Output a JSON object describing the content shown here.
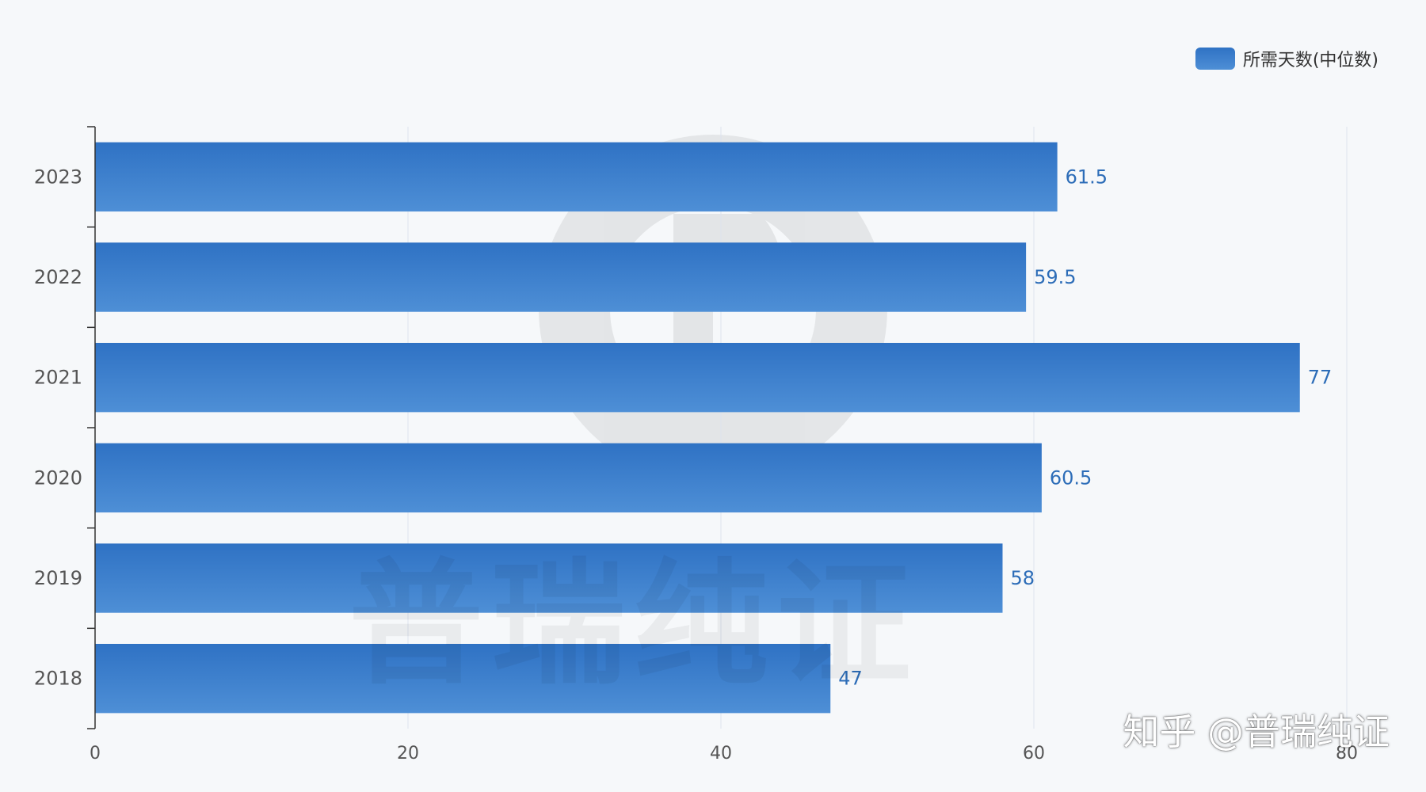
{
  "colors": {
    "bar_top": "#2f72c4",
    "bar_bottom": "#4e8fd6",
    "label": "#2d6db8",
    "axis_text": "#555555",
    "grid": "#dde3ee",
    "axis_line": "#333333"
  },
  "watermark": {
    "icon": "logo-icon",
    "text": "普瑞纯证"
  },
  "credit": "知乎 @普瑞纯证",
  "chart_data": {
    "type": "bar",
    "orientation": "horizontal",
    "title": "",
    "xlabel": "",
    "ylabel": "",
    "xlim": [
      0,
      80
    ],
    "x_ticks": [
      0,
      20,
      40,
      60,
      80
    ],
    "grid": true,
    "legend_position": "top-right",
    "categories": [
      "2023",
      "2022",
      "2021",
      "2020",
      "2019",
      "2018"
    ],
    "series": [
      {
        "name": "所需天数(中位数)",
        "values": [
          61.5,
          59.5,
          77,
          60.5,
          58,
          47
        ]
      }
    ]
  }
}
